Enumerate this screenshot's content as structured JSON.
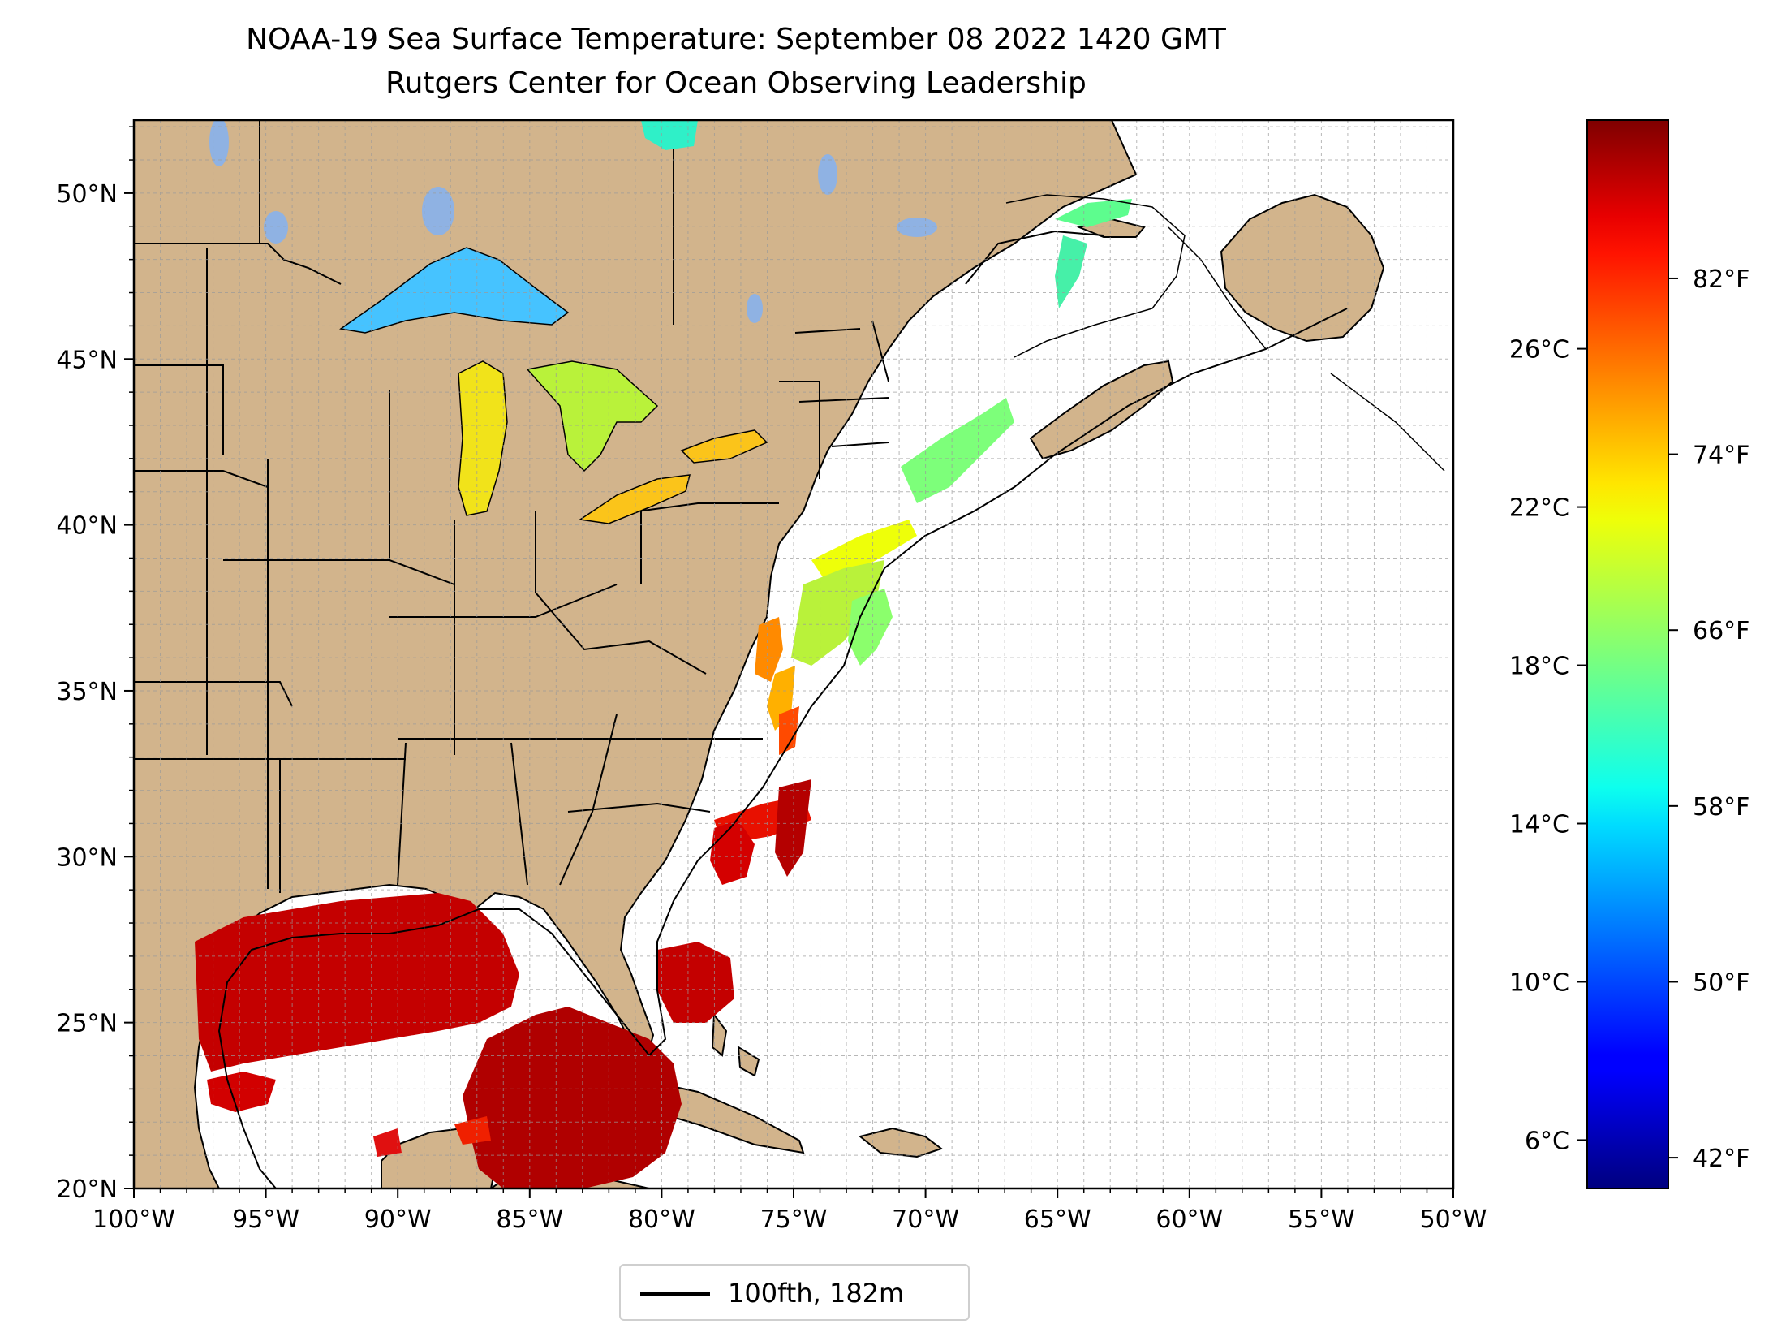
{
  "title": "NOAA-19 Sea Surface Temperature: September 08 2022 1420 GMT",
  "subtitle": "Rutgers Center for Ocean Observing Leadership",
  "map": {
    "lon_range": [
      -100,
      -50
    ],
    "lat_range": [
      20,
      52.2
    ],
    "lon_ticks": [
      "100°W",
      "95°W",
      "90°W",
      "85°W",
      "80°W",
      "75°W",
      "70°W",
      "65°W",
      "60°W",
      "55°W",
      "50°W"
    ],
    "lat_ticks": [
      "20°N",
      "25°N",
      "30°N",
      "35°N",
      "40°N",
      "45°N",
      "50°N"
    ],
    "grid": "dashed every 1°",
    "land_color": "#d2b48c",
    "water_color": "#ffffff",
    "lake_color": "#8fb2e3"
  },
  "colorbar": {
    "colormap": "jet",
    "fahrenheit_ticks": [
      "82°F",
      "74°F",
      "66°F",
      "58°F",
      "50°F",
      "42°F"
    ],
    "celsius_ticks": [
      "26°C",
      "22°C",
      "18°C",
      "14°C",
      "10°C",
      "6°C"
    ],
    "range_f": [
      40.6,
      89.2
    ]
  },
  "legend": {
    "label": "100fth, 182m",
    "placement": "bottom-center"
  },
  "sst_regions": [
    {
      "name": "Gulf of Mexico",
      "approx_f": 85
    },
    {
      "name": "Lake Superior",
      "approx_f": 60
    },
    {
      "name": "Lake Michigan / Huron",
      "approx_f": 70
    },
    {
      "name": "Lake Erie / Ontario",
      "approx_f": 73
    },
    {
      "name": "Gulf of Maine",
      "approx_f": 63
    }
  ]
}
